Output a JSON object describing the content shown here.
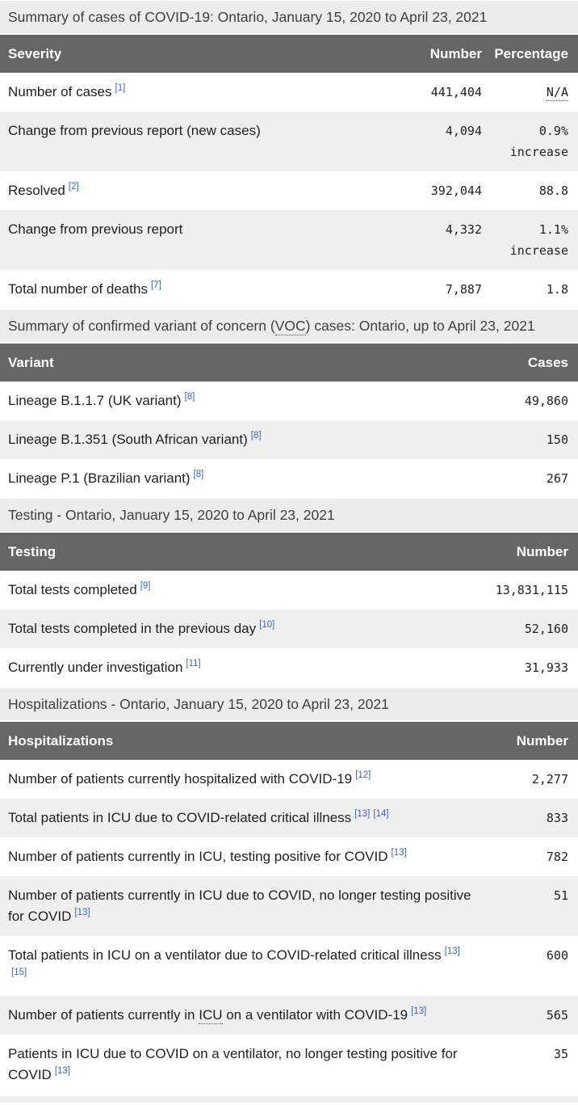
{
  "colors": {
    "header_bg": "#666666",
    "header_text": "#ffffff",
    "caption_bg": "#ececec",
    "caption_text": "#3f3f3f",
    "row_alt_bg": "#efefef",
    "text": "#1f1f1f",
    "link": "#3366cc"
  },
  "tables": [
    {
      "id": "cases",
      "caption": [
        {
          "text": "Summary of cases of COVID-19: Ontario, January 15, 2020 to April 23, 2021"
        }
      ],
      "columns": [
        "Severity",
        "Number",
        "Percentage"
      ],
      "rows": [
        {
          "label": [
            {
              "text": "Number of cases"
            }
          ],
          "refs": [
            "[1]"
          ],
          "number": "441,404",
          "percentage": [
            {
              "text": "N/A",
              "abbr": true
            }
          ]
        },
        {
          "label": [
            {
              "text": "Change from previous report (new cases)"
            }
          ],
          "refs": [],
          "number": "4,094",
          "percentage": [
            {
              "text": "0.9% increase"
            }
          ]
        },
        {
          "label": [
            {
              "text": "Resolved"
            }
          ],
          "refs": [
            "[2]"
          ],
          "number": "392,044",
          "percentage": [
            {
              "text": "88.8"
            }
          ]
        },
        {
          "label": [
            {
              "text": "Change from previous report"
            }
          ],
          "refs": [],
          "number": "4,332",
          "percentage": [
            {
              "text": "1.1% increase"
            }
          ]
        },
        {
          "label": [
            {
              "text": "Total number of deaths"
            }
          ],
          "refs": [
            "[7]"
          ],
          "number": "7,887",
          "percentage": [
            {
              "text": "1.8"
            }
          ]
        }
      ]
    },
    {
      "id": "variants",
      "caption": [
        {
          "text": "Summary of confirmed variant of concern ("
        },
        {
          "text": "VOC",
          "abbr": true
        },
        {
          "text": ") cases: Ontario, up to April 23, 2021"
        }
      ],
      "columns": [
        "Variant",
        "Cases"
      ],
      "rows": [
        {
          "label": [
            {
              "text": "Lineage B.1.1.7 (UK variant)"
            }
          ],
          "refs": [
            "[8]"
          ],
          "number": "49,860"
        },
        {
          "label": [
            {
              "text": "Lineage B.1.351 (South African variant)"
            }
          ],
          "refs": [
            "[8]"
          ],
          "number": "150"
        },
        {
          "label": [
            {
              "text": "Lineage P.1 (Brazilian variant)"
            }
          ],
          "refs": [
            "[8]"
          ],
          "number": "267"
        }
      ]
    },
    {
      "id": "testing",
      "caption": [
        {
          "text": "Testing - Ontario, January 15, 2020 to April 23, 2021"
        }
      ],
      "columns": [
        "Testing",
        "Number"
      ],
      "rows": [
        {
          "label": [
            {
              "text": "Total tests completed"
            }
          ],
          "refs": [
            "[9]"
          ],
          "number": "13,831,115"
        },
        {
          "label": [
            {
              "text": "Total tests completed in the previous day"
            }
          ],
          "refs": [
            "[10]"
          ],
          "number": "52,160"
        },
        {
          "label": [
            {
              "text": "Currently under investigation"
            }
          ],
          "refs": [
            "[11]"
          ],
          "number": "31,933"
        }
      ]
    },
    {
      "id": "hospitalizations",
      "caption": [
        {
          "text": "Hospitalizations - Ontario, January 15, 2020 to April 23, 2021"
        }
      ],
      "columns": [
        "Hospitalizations",
        "Number"
      ],
      "rows": [
        {
          "label": [
            {
              "text": "Number of patients currently hospitalized with COVID-19"
            }
          ],
          "refs": [
            "[12]"
          ],
          "number": "2,277"
        },
        {
          "label": [
            {
              "text": "Total patients in ICU due to COVID-related critical illness"
            }
          ],
          "refs": [
            "[13]",
            "[14]"
          ],
          "number": "833"
        },
        {
          "label": [
            {
              "text": "Number of patients currently in ICU, testing positive for COVID"
            }
          ],
          "refs": [
            "[13]"
          ],
          "number": "782"
        },
        {
          "label": [
            {
              "text": "Number of patients currently in ICU due to COVID, no longer testing positive for COVID"
            }
          ],
          "refs": [
            "[13]"
          ],
          "number": "51"
        },
        {
          "label": [
            {
              "text": "Total patients in ICU on a ventilator due to COVID-related critical illness"
            }
          ],
          "refs": [
            "[13]",
            "[15]"
          ],
          "number": "600"
        },
        {
          "label": [
            {
              "text": "Number of patients currently in "
            },
            {
              "text": "ICU",
              "abbr": true
            },
            {
              "text": " on a ventilator with COVID-19"
            }
          ],
          "refs": [
            "[13]"
          ],
          "number": "565"
        },
        {
          "label": [
            {
              "text": "Patients in ICU due to COVID on a ventilator, no longer testing positive for COVID"
            }
          ],
          "refs": [
            "[13]"
          ],
          "number": "35"
        }
      ]
    }
  ],
  "cutoff_row": {
    "note": ""
  }
}
